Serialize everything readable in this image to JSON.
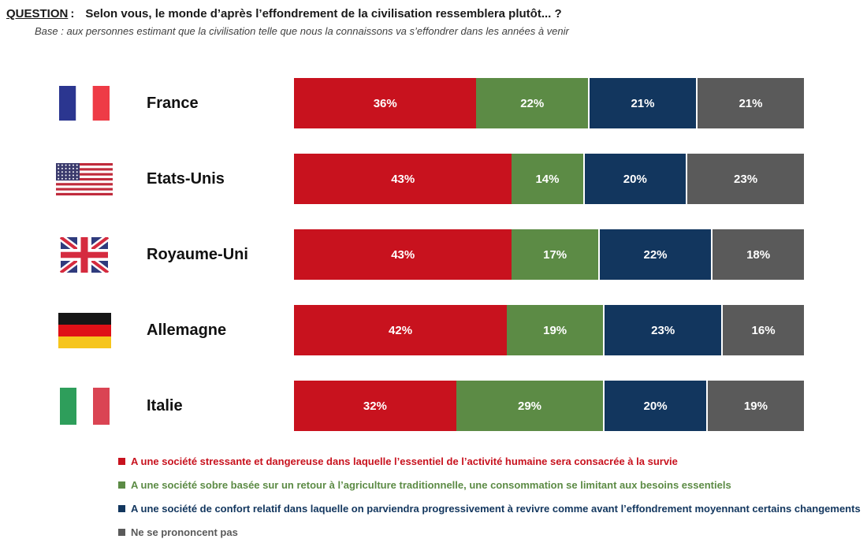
{
  "header": {
    "question_label": "QUESTION",
    "question_colon": ":",
    "question_text": "Selon vous, le monde d’après l’effondrement de la civilisation ressemblera plutôt... ?",
    "base_text": "Base : aux personnes estimant que la civilisation telle que nous la connaissons va s’effondrer dans les années à venir"
  },
  "chart_data": {
    "type": "bar",
    "variant": "horizontal-stacked-100",
    "unit": "%",
    "legend_position": "bottom",
    "categories": [
      "France",
      "Etats-Unis",
      "Royaume-Uni",
      "Allemagne",
      "Italie"
    ],
    "flags": [
      "france",
      "etats-unis",
      "royaume-uni",
      "allemagne",
      "italie"
    ],
    "series": [
      {
        "key": "survie",
        "label": "A une société stressante et dangereuse dans laquelle l’essentiel de l’activité humaine sera consacrée à la survie",
        "color": "#C8121E",
        "values": [
          36,
          43,
          43,
          42,
          32
        ]
      },
      {
        "key": "sobre",
        "label": "A une société sobre basée sur un retour à l’agriculture traditionnelle, une consommation se limitant aux besoins essentiels",
        "color": "#5C8B45",
        "values": [
          22,
          14,
          17,
          19,
          29
        ]
      },
      {
        "key": "confort",
        "label": "A une société de confort relatif dans laquelle on parviendra progressivement à revivre comme avant l’effondrement moyennant certains changements",
        "color": "#12365E",
        "values": [
          21,
          20,
          22,
          23,
          20
        ]
      },
      {
        "key": "nsp",
        "label": "Ne se prononcent pas",
        "color": "#5A5A5A",
        "values": [
          21,
          23,
          18,
          16,
          19
        ]
      }
    ]
  }
}
